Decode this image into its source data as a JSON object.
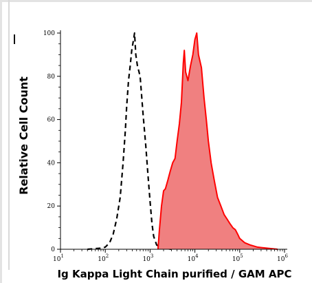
{
  "chart_data": {
    "type": "area",
    "title": "",
    "xlabel": "Ig Kappa Light Chain purified / GAM APC",
    "ylabel": "Relative Cell Count",
    "x_scale": "log",
    "xlim": [
      10,
      1000000
    ],
    "ylim": [
      0,
      100
    ],
    "grid": false,
    "x_ticks": [
      {
        "base": "10",
        "exp": "1",
        "value": 10
      },
      {
        "base": "10",
        "exp": "2",
        "value": 100
      },
      {
        "base": "10",
        "exp": "3",
        "value": 1000
      },
      {
        "base": "10",
        "exp": "4",
        "value": 10000
      },
      {
        "base": "10",
        "exp": "5",
        "value": 100000
      },
      {
        "base": "10",
        "exp": "6",
        "value": 1000000
      }
    ],
    "y_ticks": [
      {
        "label": "0",
        "value": 0
      },
      {
        "label": "20",
        "value": 20
      },
      {
        "label": "40",
        "value": 40
      },
      {
        "label": "60",
        "value": 60
      },
      {
        "label": "80",
        "value": 80
      },
      {
        "label": "100",
        "value": 100
      }
    ],
    "series": [
      {
        "style": "dashed-outline",
        "color": "#000000",
        "points": [
          [
            40,
            0
          ],
          [
            80,
            0.5
          ],
          [
            100,
            1
          ],
          [
            125,
            3
          ],
          [
            150,
            7
          ],
          [
            180,
            14
          ],
          [
            215,
            24
          ],
          [
            250,
            40
          ],
          [
            280,
            55
          ],
          [
            300,
            66
          ],
          [
            330,
            78
          ],
          [
            360,
            85
          ],
          [
            390,
            92
          ],
          [
            420,
            96
          ],
          [
            450,
            100
          ],
          [
            480,
            90
          ],
          [
            520,
            85
          ],
          [
            600,
            80
          ],
          [
            700,
            62
          ],
          [
            800,
            48
          ],
          [
            900,
            34
          ],
          [
            1000,
            22
          ],
          [
            1100,
            12
          ],
          [
            1200,
            6
          ],
          [
            1400,
            2
          ],
          [
            1800,
            0.5
          ],
          [
            3000,
            0
          ]
        ]
      },
      {
        "style": "filled",
        "color": "#ff0000",
        "fill": "#f08080",
        "points": [
          [
            1500,
            0
          ],
          [
            1600,
            8
          ],
          [
            1800,
            20
          ],
          [
            2000,
            27
          ],
          [
            2200,
            28
          ],
          [
            2500,
            32
          ],
          [
            2800,
            36
          ],
          [
            3200,
            40
          ],
          [
            3600,
            42
          ],
          [
            4000,
            50
          ],
          [
            4500,
            58
          ],
          [
            5000,
            68
          ],
          [
            5500,
            86
          ],
          [
            5800,
            92
          ],
          [
            6200,
            82
          ],
          [
            7000,
            78
          ],
          [
            8000,
            85
          ],
          [
            9000,
            90
          ],
          [
            10000,
            97
          ],
          [
            11000,
            100
          ],
          [
            12000,
            90
          ],
          [
            14000,
            84
          ],
          [
            16000,
            70
          ],
          [
            18000,
            60
          ],
          [
            20000,
            50
          ],
          [
            23000,
            40
          ],
          [
            27000,
            32
          ],
          [
            32000,
            24
          ],
          [
            38000,
            20
          ],
          [
            45000,
            16
          ],
          [
            52000,
            14
          ],
          [
            60000,
            12
          ],
          [
            70000,
            10
          ],
          [
            80000,
            9
          ],
          [
            90000,
            7
          ],
          [
            100000,
            5
          ],
          [
            130000,
            3
          ],
          [
            170000,
            2
          ],
          [
            250000,
            1
          ],
          [
            400000,
            0.5
          ],
          [
            700000,
            0
          ]
        ]
      }
    ]
  }
}
